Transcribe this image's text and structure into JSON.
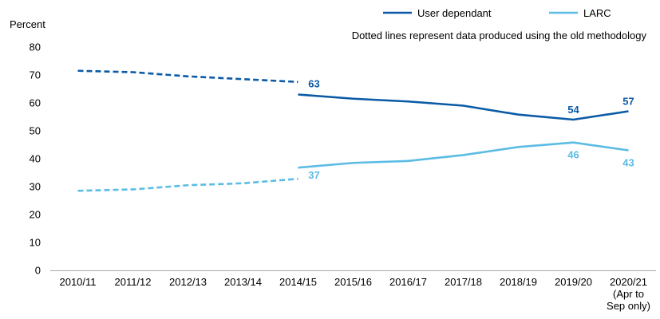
{
  "chart_data": {
    "type": "line",
    "ylabel": "Percent",
    "ylim": [
      0,
      80
    ],
    "yticks": [
      0,
      10,
      20,
      30,
      40,
      50,
      60,
      70,
      80
    ],
    "categories": [
      [
        "2010/11"
      ],
      [
        "2011/12"
      ],
      [
        "2012/13"
      ],
      [
        "2013/14"
      ],
      [
        "2014/15"
      ],
      [
        "2015/16"
      ],
      [
        "2016/17"
      ],
      [
        "2017/18"
      ],
      [
        "2018/19"
      ],
      [
        "2019/20"
      ],
      [
        "2020/21",
        "(Apr to",
        "Sep only)"
      ]
    ],
    "note": "Dotted lines represent data produced using the old methodology",
    "legend_position": "top-right",
    "grid": false,
    "series": [
      {
        "name": "User dependant",
        "color": "#0b5aa6",
        "old_methodology": [
          71.5,
          71,
          69.5,
          68.5,
          67.5
        ],
        "new_methodology": [
          63,
          61.5,
          60.5,
          59,
          55.8,
          54,
          57
        ],
        "new_start_index": 4,
        "labels": [
          {
            "index": 4,
            "text": "63",
            "placement": "above-right"
          },
          {
            "index": 9,
            "text": "54",
            "placement": "above"
          },
          {
            "index": 10,
            "text": "57",
            "placement": "above"
          }
        ]
      },
      {
        "name": "LARC",
        "color": "#5bbce4",
        "old_methodology": [
          28.5,
          29,
          30.5,
          31.2,
          32.8
        ],
        "new_methodology": [
          36.8,
          38.5,
          39.2,
          41.3,
          44.2,
          45.8,
          43
        ],
        "new_start_index": 4,
        "labels": [
          {
            "index": 4,
            "text": "37",
            "placement": "below-right"
          },
          {
            "index": 9,
            "text": "46",
            "placement": "below"
          },
          {
            "index": 10,
            "text": "43",
            "placement": "below"
          }
        ]
      }
    ]
  }
}
